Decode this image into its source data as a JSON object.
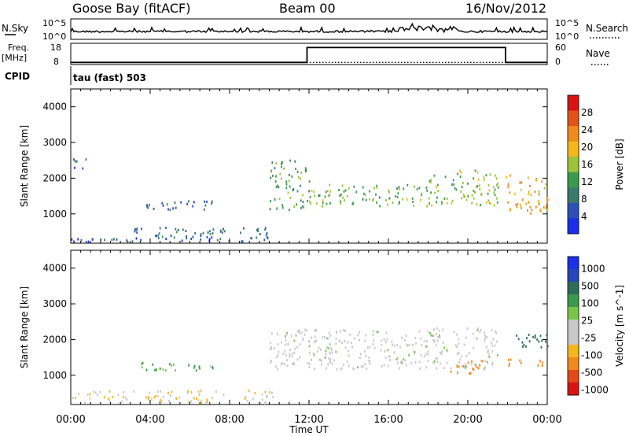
{
  "header": {
    "station": "Goose Bay (fitACF)",
    "beam": "Beam 00",
    "date": "16/Nov/2012"
  },
  "top_panels": {
    "nsky_label": "N.Sky",
    "nsky_ticks": [
      "10^5",
      "10^0"
    ],
    "nsearch_label": "N.Search",
    "nsearch_ticks": [
      "10^5",
      "10^0"
    ],
    "freq_label": "Freq.",
    "freq_unit": "[MHz]",
    "freq_ticks": [
      "18",
      "8"
    ],
    "nave_label": "Nave",
    "nave_ticks": [
      "60",
      "0"
    ],
    "cpid_label": "CPID",
    "cpid_text": "tau (fast) 503",
    "freq_step": {
      "start_hour": 11.9,
      "end_hour": 21.9,
      "high_mhz": 16,
      "low_mhz": 9
    }
  },
  "x_axis": {
    "label": "Time UT",
    "ticks": [
      "00:00",
      "04:00",
      "08:00",
      "12:00",
      "16:00",
      "20:00",
      "00:00"
    ],
    "range_hours": [
      0,
      24
    ]
  },
  "colors": {
    "power": [
      "#1c2ee8",
      "#2d4fb6",
      "#3a7a6a",
      "#3c9a4c",
      "#9bc43a",
      "#f4b71c",
      "#f08a1c",
      "#e25418",
      "#d81414"
    ],
    "velocity": [
      "#d81414",
      "#e24a18",
      "#f08a1c",
      "#f4b71c",
      "#c8c8c8",
      "#c8c8c8",
      "#79c44a",
      "#3c9a4c",
      "#2d6c5a",
      "#2746b8",
      "#1c2ee8"
    ]
  },
  "chart_data": [
    {
      "type": "heatmap",
      "name": "power",
      "xlabel": "Time UT",
      "ylabel": "Slant Range [km]",
      "ylim": [
        180,
        4500
      ],
      "xlim": [
        0,
        24
      ],
      "yticks": [
        "1000",
        "2000",
        "3000",
        "4000"
      ],
      "colorbar_label": "Power [dB]",
      "colorbar_ticks": [
        "4",
        "8",
        "12",
        "16",
        "20",
        "24",
        "28"
      ],
      "echo_regions": [
        {
          "t0": 0.0,
          "t1": 10.2,
          "r0": 200,
          "r1": 350,
          "value": 6
        },
        {
          "t0": 3.0,
          "t1": 10.0,
          "r0": 350,
          "r1": 600,
          "value": 8
        },
        {
          "t0": 3.5,
          "t1": 7.2,
          "r0": 1100,
          "r1": 1350,
          "value": 7
        },
        {
          "t0": 0.1,
          "t1": 0.8,
          "r0": 2250,
          "r1": 2750,
          "value": 6
        },
        {
          "t0": 10.0,
          "t1": 12.0,
          "r0": 1100,
          "r1": 2500,
          "value": 12
        },
        {
          "t0": 12.0,
          "t1": 18.0,
          "r0": 1200,
          "r1": 1800,
          "value": 14
        },
        {
          "t0": 18.0,
          "t1": 21.5,
          "r0": 1200,
          "r1": 2200,
          "value": 15
        },
        {
          "t0": 21.8,
          "t1": 24.0,
          "r0": 1000,
          "r1": 2100,
          "value": 20
        }
      ]
    },
    {
      "type": "heatmap",
      "name": "velocity",
      "xlabel": "Time UT",
      "ylabel": "Slant Range [km]",
      "ylim": [
        180,
        4500
      ],
      "xlim": [
        0,
        24
      ],
      "yticks": [
        "1000",
        "2000",
        "3000",
        "4000"
      ],
      "colorbar_label": "Velocity [m s^-1]",
      "colorbar_ticks": [
        "1000",
        "500",
        "100",
        "25",
        "-25",
        "-100",
        "-500",
        "-1000"
      ],
      "echo_regions": [
        {
          "t0": 0.0,
          "t1": 10.2,
          "r0": 200,
          "r1": 550,
          "value": -50
        },
        {
          "t0": 3.5,
          "t1": 7.2,
          "r0": 1100,
          "r1": 1350,
          "value": 50
        },
        {
          "t0": 10.0,
          "t1": 21.5,
          "r0": 1150,
          "r1": 2300,
          "value": 0
        },
        {
          "t0": 19.0,
          "t1": 20.8,
          "r0": 1000,
          "r1": 1400,
          "value": -150
        },
        {
          "t0": 22.0,
          "t1": 24.0,
          "r0": 1250,
          "r1": 1450,
          "value": -300
        },
        {
          "t0": 22.3,
          "t1": 24.0,
          "r0": 1750,
          "r1": 2150,
          "value": 150
        }
      ]
    }
  ]
}
